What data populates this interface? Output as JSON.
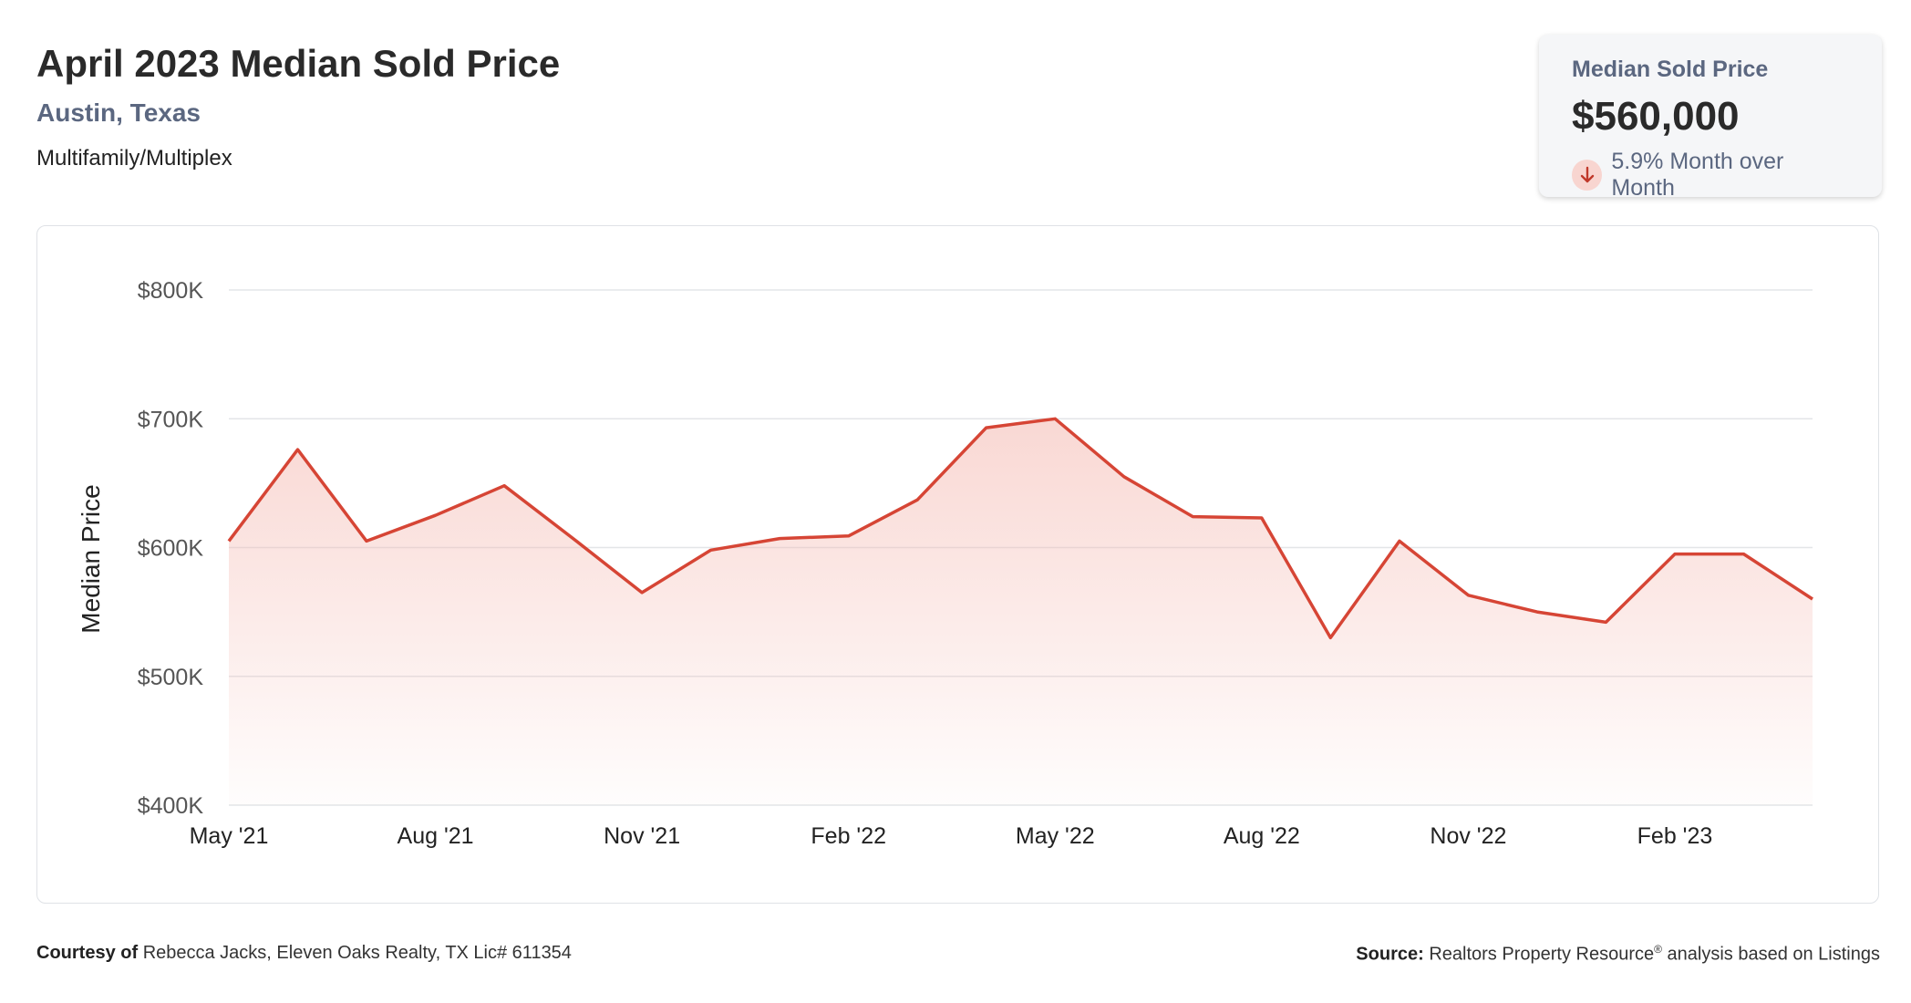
{
  "header": {
    "title": "April 2023 Median Sold Price",
    "location": "Austin, Texas",
    "category": "Multifamily/Multiplex"
  },
  "stat_card": {
    "label": "Median Sold Price",
    "value": "$560,000",
    "change_text": "5.9% Month over Month",
    "direction_icon": "arrow-down-icon"
  },
  "footer": {
    "courtesy_label": "Courtesy of",
    "courtesy_text": "Rebecca Jacks, Eleven Oaks Realty, TX Lic# 611354",
    "source_label": "Source:",
    "source_text": "Realtors Property Resource",
    "source_mark": "®",
    "source_suffix": "analysis based on Listings"
  },
  "colors": {
    "line": "#d64535",
    "fill_top": "#f4b8b0",
    "grid": "#e3e5e8",
    "axis_text": "#555555"
  },
  "chart_data": {
    "type": "area",
    "ylabel": "Median Price",
    "xlabel": "",
    "ylim": [
      400000,
      800000
    ],
    "y_ticks": [
      800000,
      700000,
      600000,
      500000,
      400000
    ],
    "y_tick_labels": [
      "$800K",
      "$700K",
      "$600K",
      "$500K",
      "$400K"
    ],
    "x_tick_labels": [
      "May '21",
      "Aug '21",
      "Nov '21",
      "Feb '22",
      "May '22",
      "Aug '22",
      "Nov '22",
      "Feb '23"
    ],
    "x": [
      "2021-05",
      "2021-06",
      "2021-07",
      "2021-08",
      "2021-09",
      "2021-10",
      "2021-11",
      "2021-12",
      "2022-01",
      "2022-02",
      "2022-03",
      "2022-04",
      "2022-05",
      "2022-06",
      "2022-07",
      "2022-08",
      "2022-09",
      "2022-10",
      "2022-11",
      "2022-12",
      "2023-01",
      "2023-02",
      "2023-03",
      "2023-04"
    ],
    "series": [
      {
        "values": [
          605000,
          676000,
          605000,
          625000,
          648000,
          607000,
          565000,
          598000,
          607000,
          609000,
          637000,
          693000,
          700000,
          655000,
          624000,
          623000,
          530000,
          605000,
          563000,
          550000,
          542000,
          595000,
          595000,
          560000
        ]
      }
    ],
    "grid": true,
    "legend": "none"
  }
}
